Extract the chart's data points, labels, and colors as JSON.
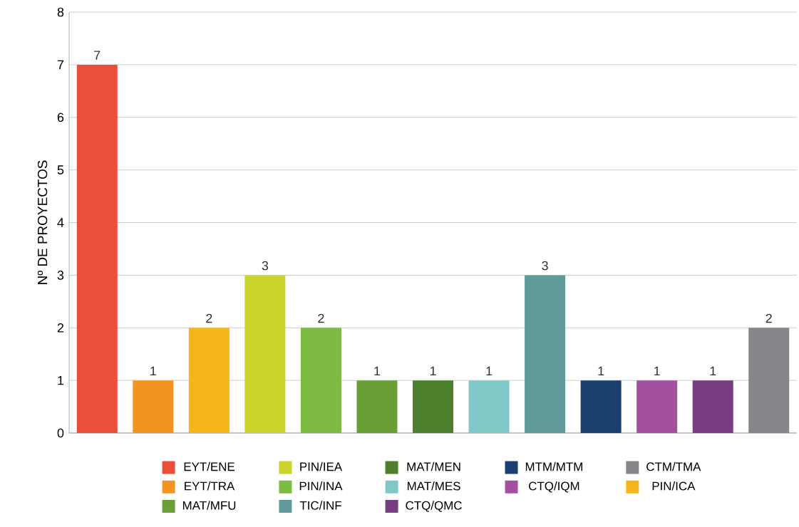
{
  "chart_data": {
    "type": "bar",
    "ylabel": "Nº DE PROYECTOS",
    "categories": [
      null,
      null,
      null,
      null,
      null,
      null,
      null,
      null,
      null,
      null,
      null,
      null,
      null
    ],
    "series": [
      {
        "name": "EYT/ENE",
        "color": "#e9503a",
        "values": [
          7,
          null,
          null,
          null,
          null,
          null,
          null,
          null,
          null,
          null,
          null,
          null,
          null
        ]
      },
      {
        "name": "EYT/TRA",
        "color": "#f39421",
        "values": [
          null,
          1,
          null,
          null,
          null,
          null,
          null,
          null,
          null,
          null,
          null,
          null,
          null
        ]
      },
      {
        "name": "PIN/ICA",
        "color": "#f6b51b",
        "values": [
          null,
          null,
          2,
          null,
          null,
          null,
          null,
          null,
          null,
          null,
          null,
          null,
          null
        ]
      },
      {
        "name": "PIN/IEA",
        "color": "#c9d42c",
        "values": [
          null,
          null,
          null,
          3,
          null,
          null,
          null,
          null,
          null,
          null,
          null,
          null,
          null
        ]
      },
      {
        "name": "PIN/INA",
        "color": "#7dba41",
        "values": [
          null,
          null,
          null,
          null,
          2,
          null,
          null,
          null,
          null,
          null,
          null,
          null,
          null
        ]
      },
      {
        "name": "MAT/MFU",
        "color": "#6a9f37",
        "values": [
          null,
          null,
          null,
          null,
          null,
          1,
          null,
          null,
          null,
          null,
          null,
          null,
          null
        ]
      },
      {
        "name": "MAT/MEN",
        "color": "#4c7f2c",
        "values": [
          null,
          null,
          null,
          null,
          null,
          null,
          1,
          null,
          null,
          null,
          null,
          null,
          null
        ]
      },
      {
        "name": "MAT/MES",
        "color": "#81c9c8",
        "values": [
          null,
          null,
          null,
          null,
          null,
          null,
          null,
          1,
          null,
          null,
          null,
          null,
          null
        ]
      },
      {
        "name": "TIC/INF",
        "color": "#5e9a98",
        "values": [
          null,
          null,
          null,
          null,
          null,
          null,
          null,
          null,
          3,
          null,
          null,
          null,
          null
        ]
      },
      {
        "name": "MTM/MTM",
        "color": "#1b3f6f",
        "values": [
          null,
          null,
          null,
          null,
          null,
          null,
          null,
          null,
          null,
          1,
          null,
          null,
          null
        ]
      },
      {
        "name": "CTQ/IQM",
        "color": "#a3519e",
        "values": [
          null,
          null,
          null,
          null,
          null,
          null,
          null,
          null,
          null,
          null,
          1,
          null,
          null
        ]
      },
      {
        "name": "CTQ/QMC",
        "color": "#773d80",
        "values": [
          null,
          null,
          null,
          null,
          null,
          null,
          null,
          null,
          null,
          null,
          null,
          1,
          null
        ]
      },
      {
        "name": "CTM/TMA",
        "color": "#858689",
        "values": [
          null,
          null,
          null,
          null,
          null,
          null,
          null,
          null,
          null,
          null,
          null,
          null,
          2
        ]
      }
    ],
    "ylim": [
      0,
      8
    ],
    "yticks": [
      0,
      1,
      2,
      3,
      4,
      5,
      6,
      7,
      8
    ],
    "grid": "y",
    "data_labels": true,
    "legend": "bottom"
  }
}
